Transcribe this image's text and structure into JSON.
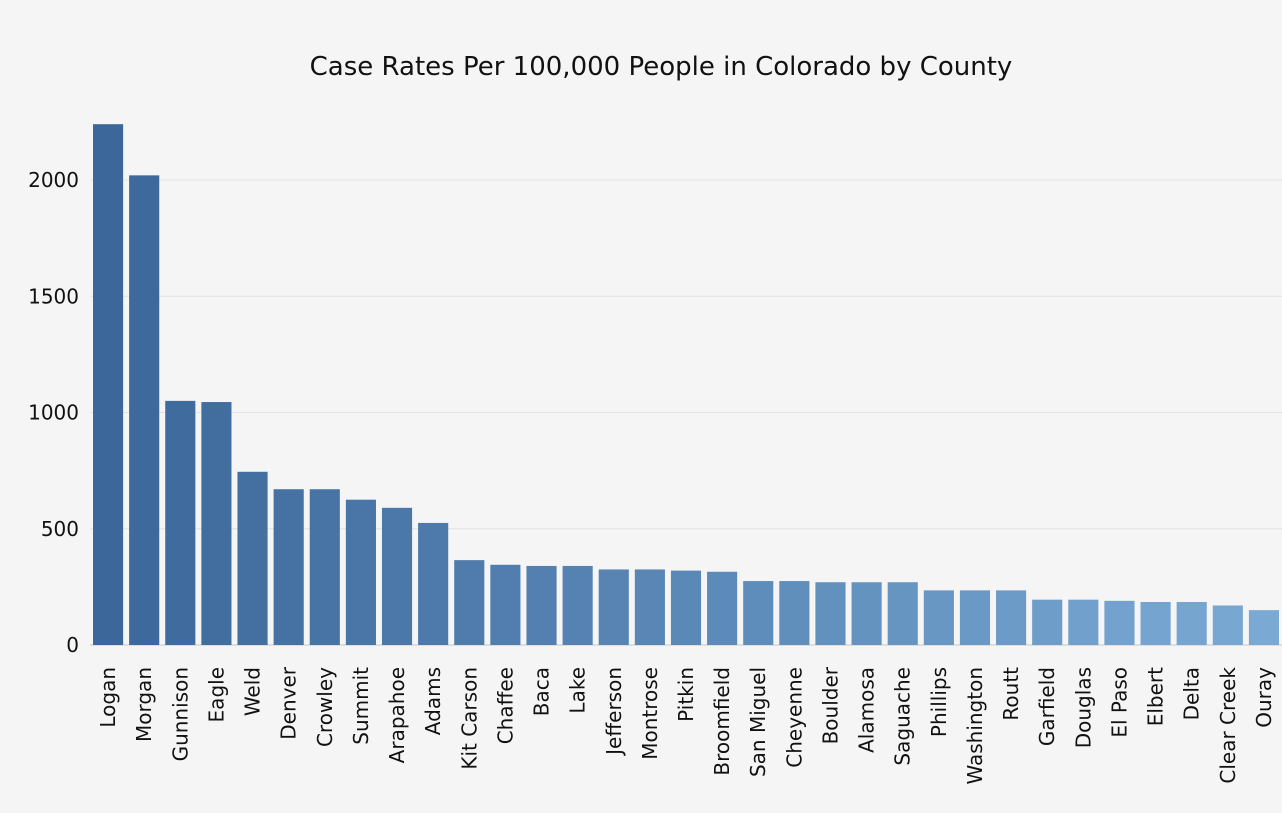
{
  "chart_data": {
    "type": "bar",
    "title": "Case Rates Per 100,000 People in Colorado by County",
    "xlabel": "",
    "ylabel": "",
    "ylim": [
      0,
      2300
    ],
    "yticks": [
      0,
      500,
      1000,
      1500,
      2000
    ],
    "grid": true,
    "legend": "none",
    "colors": {
      "dark": "#3b679a",
      "light": "#7aaad4",
      "background": "#f5f5f5"
    },
    "categories": [
      "Logan",
      "Morgan",
      "Gunnison",
      "Eagle",
      "Weld",
      "Denver",
      "Crowley",
      "Summit",
      "Arapahoe",
      "Adams",
      "Kit Carson",
      "Chaffee",
      "Baca",
      "Lake",
      "Jefferson",
      "Montrose",
      "Pitkin",
      "Broomfield",
      "San Miguel",
      "Cheyenne",
      "Boulder",
      "Alamosa",
      "Saguache",
      "Phillips",
      "Washington",
      "Routt",
      "Garfield",
      "Douglas",
      "El Paso",
      "Elbert",
      "Delta",
      "Clear Creek",
      "Ouray"
    ],
    "values": [
      2240,
      2020,
      1050,
      1045,
      745,
      670,
      670,
      625,
      590,
      525,
      365,
      345,
      340,
      340,
      325,
      325,
      320,
      315,
      275,
      275,
      270,
      270,
      270,
      235,
      235,
      235,
      195,
      195,
      190,
      185,
      185,
      170,
      150
    ]
  }
}
